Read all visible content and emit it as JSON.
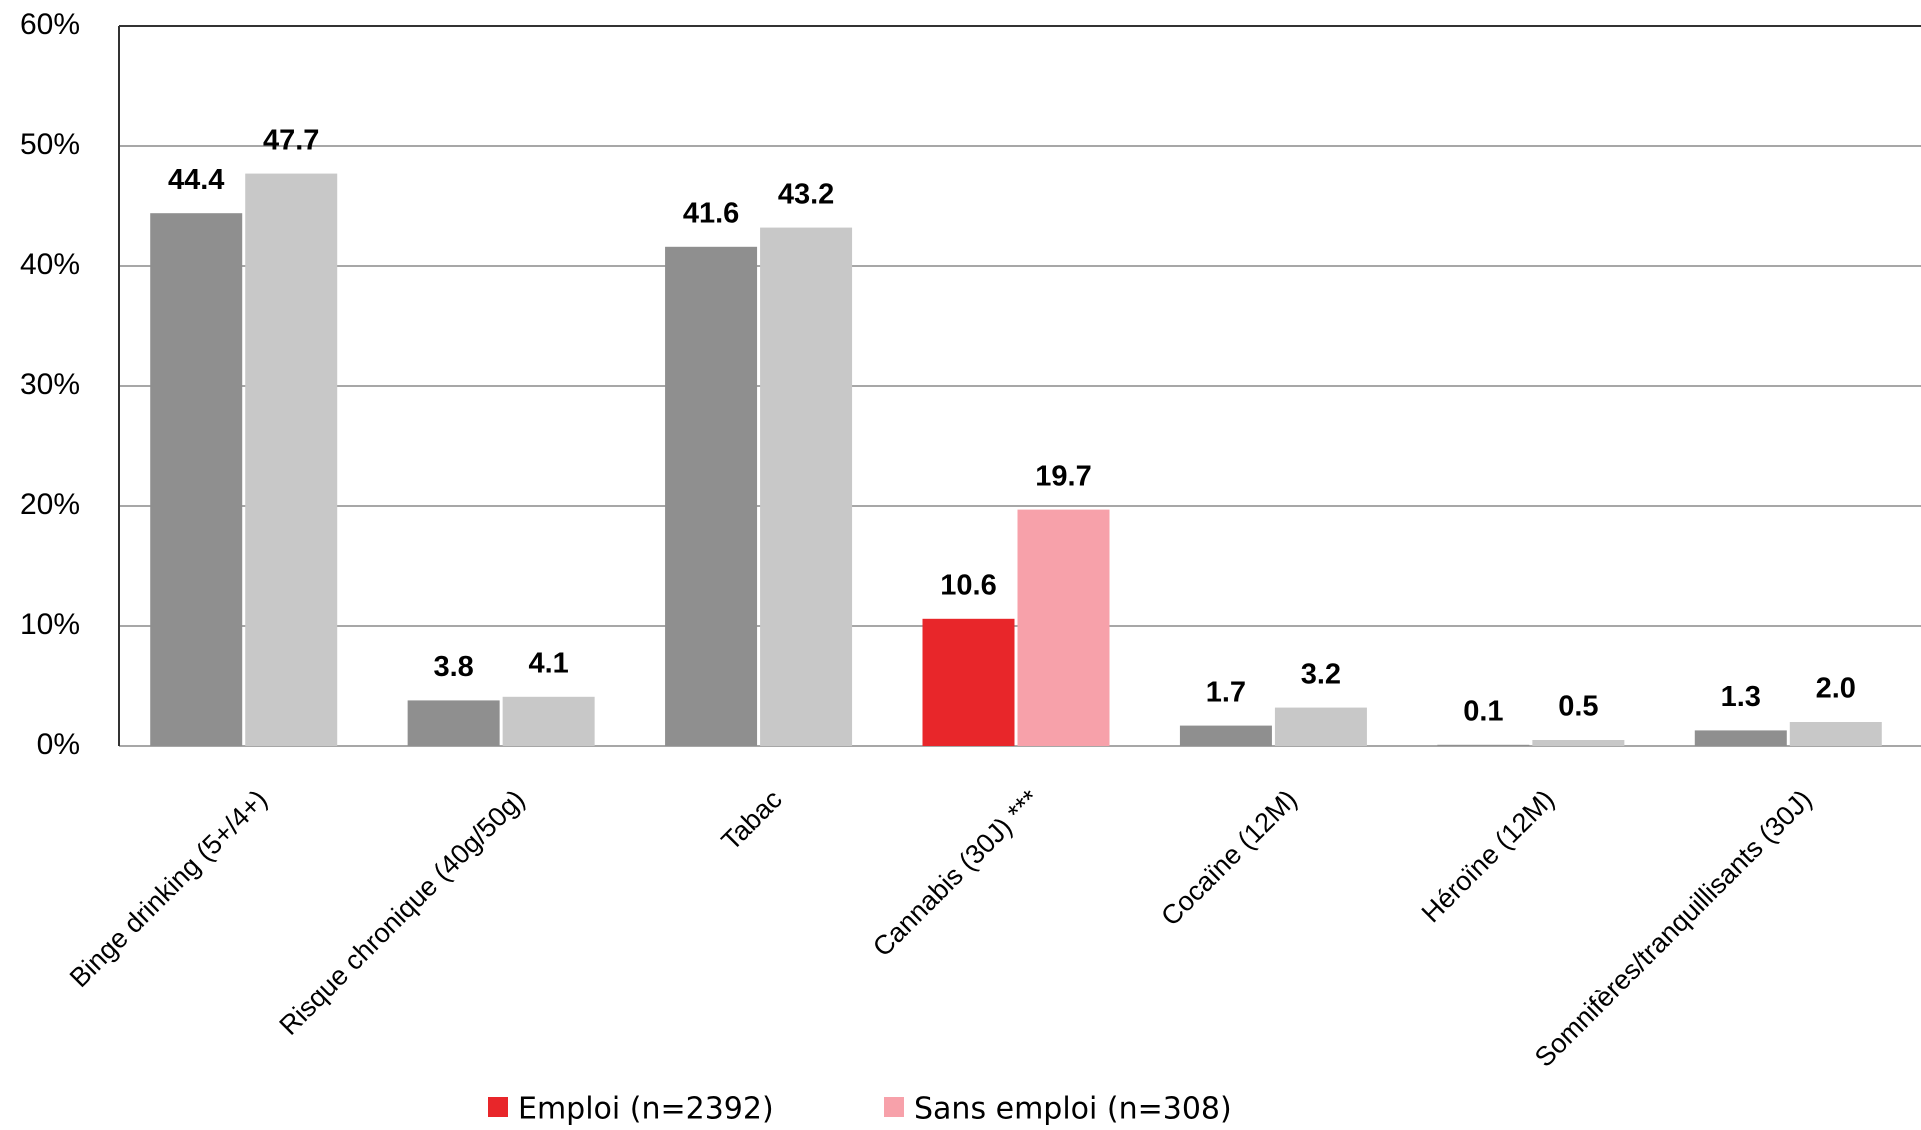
{
  "chart_data": {
    "type": "bar",
    "categories": [
      "Binge drinking (5+/4+)",
      "Risque chronique (40g/50g)",
      "Tabac",
      "Cannabis (30J) ***",
      "Cocaïne (12M)",
      "Héroïne (12M)",
      "Somnifères/tranquillisants (30J)"
    ],
    "series": [
      {
        "name": "Emploi (n=2392)",
        "color": "#e8262a",
        "colors": [
          "#8f8f8f",
          "#8f8f8f",
          "#8f8f8f",
          "#e8262a",
          "#8f8f8f",
          "#8f8f8f",
          "#8f8f8f"
        ],
        "values": [
          44.4,
          3.8,
          41.6,
          10.6,
          1.7,
          0.1,
          1.3
        ]
      },
      {
        "name": "Sans emploi (n=308)",
        "color": "#f7a1aa",
        "colors": [
          "#c8c8c8",
          "#c8c8c8",
          "#c8c8c8",
          "#f7a1aa",
          "#c8c8c8",
          "#c8c8c8",
          "#c8c8c8"
        ],
        "values": [
          47.7,
          4.1,
          43.2,
          19.7,
          3.2,
          0.5,
          2.0
        ],
        "value_labels": [
          "47.7",
          "4.1",
          "43.2",
          "19.7",
          "3.2",
          "0.5",
          "2.0"
        ]
      }
    ],
    "ylim": [
      0,
      60
    ],
    "yticks": [
      {
        "value": 0,
        "label": "0%"
      },
      {
        "value": 10,
        "label": "10%"
      },
      {
        "value": 20,
        "label": "20%"
      },
      {
        "value": 30,
        "label": "30%"
      },
      {
        "value": 40,
        "label": "40%"
      },
      {
        "value": 50,
        "label": "50%"
      },
      {
        "value": 60,
        "label": "60%"
      }
    ],
    "grid": true,
    "legend": "bottom"
  }
}
